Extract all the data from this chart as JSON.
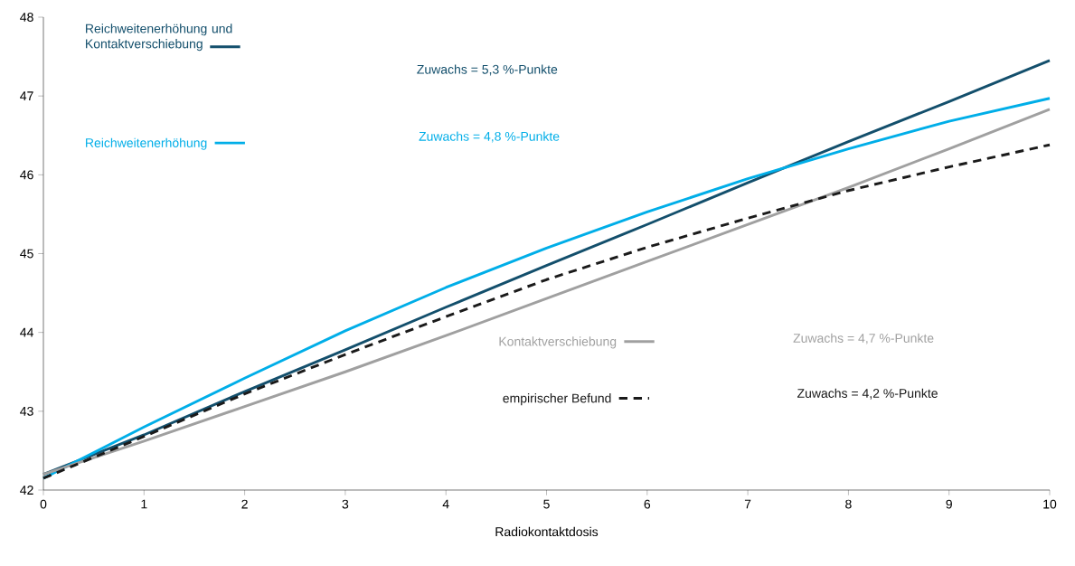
{
  "chart_data": {
    "type": "line",
    "xlabel": "Radiokontaktdosis",
    "x": [
      0,
      1,
      2,
      3,
      4,
      5,
      6,
      7,
      8,
      9,
      10
    ],
    "series": [
      {
        "name": "Reichweitenerhöhung und Kontaktverschiebung",
        "color": "#134f6c",
        "values": [
          42.2,
          42.7,
          43.25,
          43.78,
          44.32,
          44.85,
          45.37,
          45.9,
          46.42,
          46.93,
          47.45
        ]
      },
      {
        "name": "Reichweitenerhöhung",
        "color": "#00aee8",
        "values": [
          42.15,
          42.8,
          43.42,
          44.02,
          44.57,
          45.07,
          45.53,
          45.95,
          46.33,
          46.68,
          46.97
        ]
      },
      {
        "name": "Kontaktverschiebung",
        "color": "#a0a0a0",
        "values": [
          42.2,
          42.62,
          43.06,
          43.5,
          43.96,
          44.43,
          44.9,
          45.37,
          45.84,
          46.33,
          46.83
        ]
      },
      {
        "name": "empirischer Befund",
        "color": "#1a1a1a",
        "line_style": "dashed",
        "values": [
          42.15,
          42.68,
          43.22,
          43.72,
          44.2,
          44.67,
          45.08,
          45.45,
          45.8,
          46.1,
          46.38
        ]
      }
    ],
    "annotations": [
      "Zuwachs = 5,3 %-Punkte",
      "Zuwachs = 4,8 %-Punkte",
      "Zuwachs = 4,7 %-Punkte",
      "Zuwachs = 4,2 %-Punkte"
    ],
    "xlim": [
      0,
      10
    ],
    "ylim": [
      42,
      48
    ],
    "xticks": [
      0,
      1,
      2,
      3,
      4,
      5,
      6,
      7,
      8,
      9,
      10
    ],
    "yticks": [
      42,
      43,
      44,
      45,
      46,
      47,
      48
    ],
    "legend": "left",
    "grid": false,
    "marker": "none"
  }
}
